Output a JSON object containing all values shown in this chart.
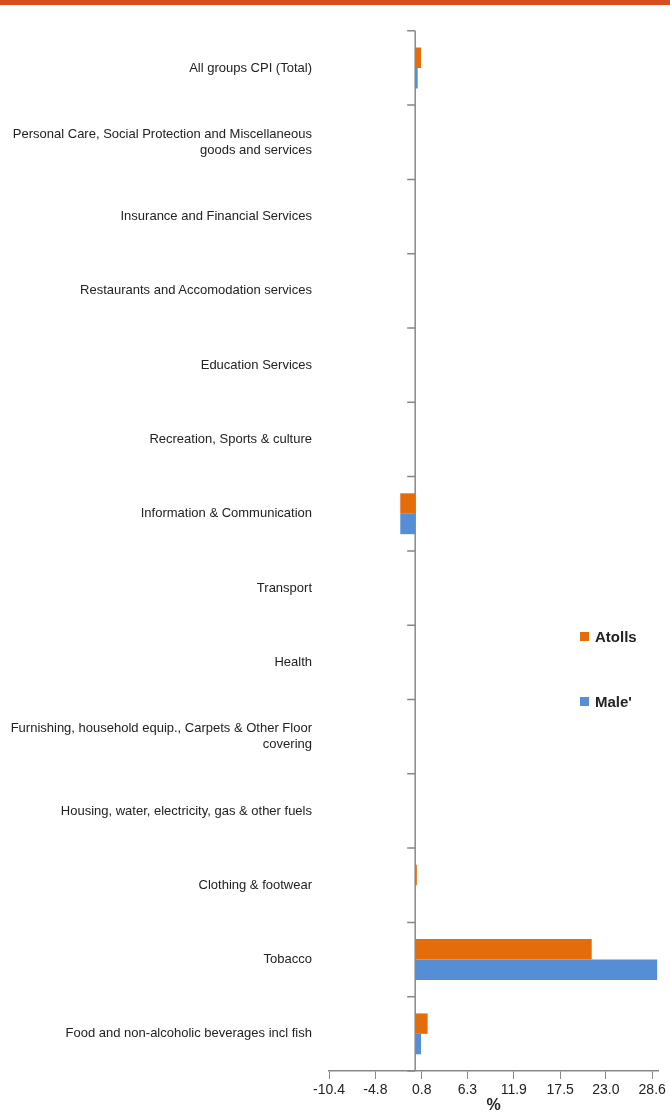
{
  "chart_data": {
    "type": "bar",
    "orientation": "horizontal",
    "categories": [
      "All groups CPI (Total)",
      "Personal Care, Social Protection and Miscellaneous goods and services",
      "Insurance and Financial Services",
      "Restaurants and Accomodation services",
      "Education Services",
      "Recreation, Sports & culture",
      "Information & Communication",
      "Transport",
      "Health",
      "Furnishing, household equip., Carpets & Other Floor covering",
      "Housing, water, electricity, gas & other fuels",
      "Clothing & footwear",
      "Tobacco",
      "Food and non-alcoholic beverages incl fish"
    ],
    "series": [
      {
        "name": "Atolls",
        "color": "#e46c0a",
        "values": [
          0.7,
          0,
          0,
          0,
          0,
          0,
          -1.8,
          0,
          0,
          0,
          0,
          0.2,
          21.3,
          1.5
        ]
      },
      {
        "name": "Male'",
        "color": "#558ed5",
        "values": [
          0.3,
          0,
          0,
          0,
          0,
          0,
          -1.8,
          0,
          0,
          0,
          0,
          0,
          29.2,
          0.7
        ]
      }
    ],
    "xlabel": "%",
    "xlim": [
      -10.4,
      29.3
    ],
    "xticks": [
      -10.4,
      -4.8,
      0.8,
      6.3,
      11.9,
      17.5,
      {
        "value": 23,
        "label": "23.0"
      },
      28.6
    ],
    "grid": false,
    "legend": "right"
  }
}
